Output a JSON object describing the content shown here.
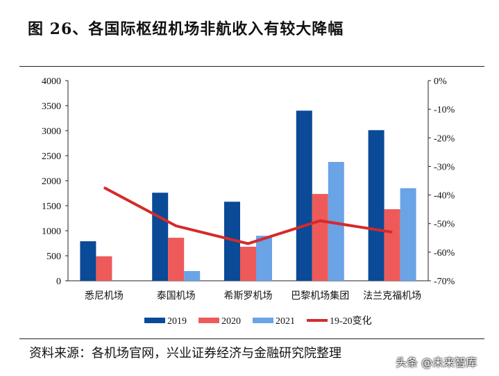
{
  "title": "图 26、各国际枢纽机场非航收入有较大降幅",
  "source": "资料来源：各机场官网，兴业证券经济与金融研究院整理",
  "watermark": "头条 @未来智库",
  "chart_data": {
    "type": "bar",
    "categories": [
      "悉尼机场",
      "泰国机场",
      "希斯罗机场",
      "巴黎机场集团",
      "法兰克福机场"
    ],
    "series": [
      {
        "name": "2019",
        "values": [
          790,
          1760,
          1580,
          3400,
          3010
        ],
        "color": "#0a4a96"
      },
      {
        "name": "2020",
        "values": [
          490,
          860,
          680,
          1735,
          1430
        ],
        "color": "#ee5a5a"
      },
      {
        "name": "2021",
        "values": [
          null,
          195,
          900,
          2375,
          1850
        ],
        "color": "#6aa3e6"
      },
      {
        "name": "19-20变化",
        "type": "line",
        "axis": "right",
        "values": [
          -37.4,
          -50.8,
          -57,
          -49,
          -53
        ],
        "color": "#d42a2a"
      }
    ],
    "ylim": [
      0,
      4000
    ],
    "yticks": [
      "0",
      "500",
      "1000",
      "1500",
      "2000",
      "2500",
      "3000",
      "3500",
      "4000"
    ],
    "y2lim": [
      -70,
      0
    ],
    "y2ticks": [
      "-70%",
      "-60%",
      "-50%",
      "-40%",
      "-30%",
      "-20%",
      "-10%",
      "0%"
    ],
    "legend": "bottom",
    "grid": false
  }
}
